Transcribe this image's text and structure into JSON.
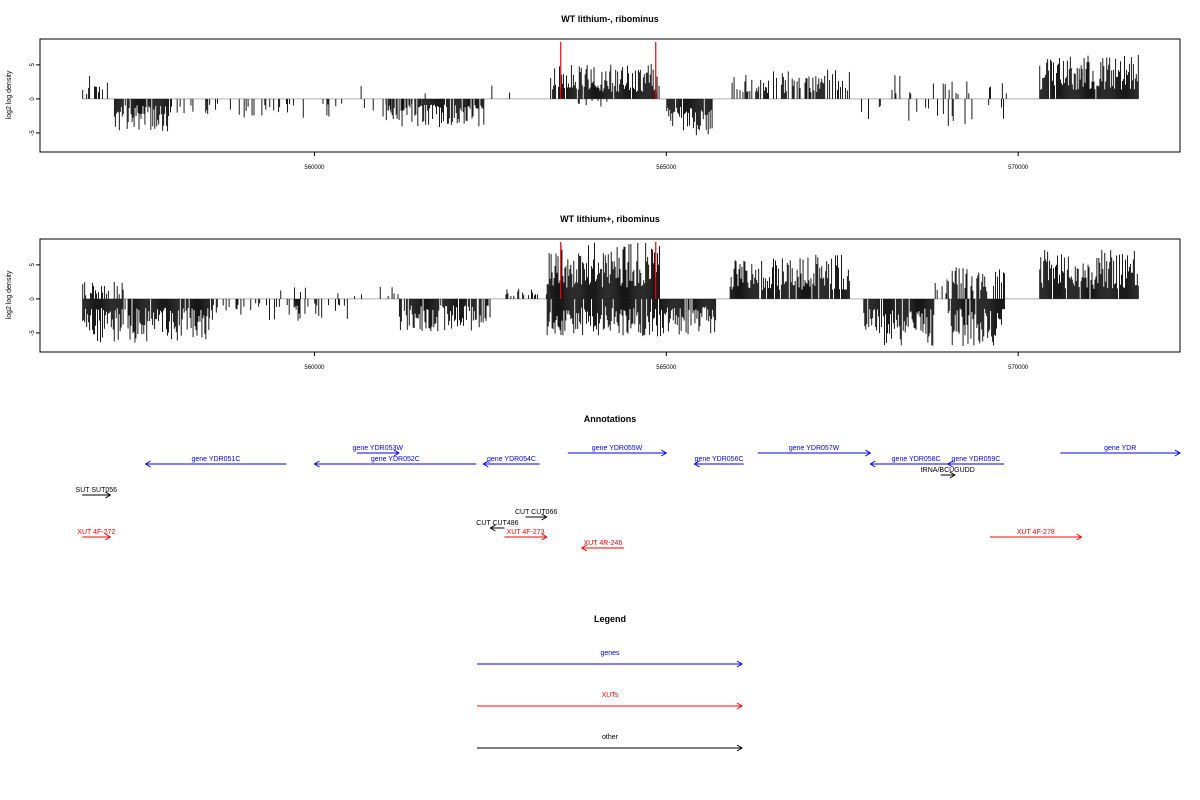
{
  "chart_data": [
    {
      "type": "bar",
      "title": "WT lithium-, ribominus",
      "ylabel": "log2 log density",
      "xlabel": "",
      "xlim": [
        556100,
        572300
      ],
      "ylim": [
        -7.8,
        8.8
      ],
      "x_ticks": [
        560000,
        565000,
        570000
      ],
      "x_tick_labels": [
        "560000",
        "565000",
        "570000"
      ],
      "y_ticks": [
        -5,
        0,
        5
      ],
      "y_tick_labels": [
        "-5",
        "0",
        "5"
      ],
      "markers": [
        563500,
        564850
      ],
      "coverage_regions": [
        {
          "start": 556700,
          "end": 557200,
          "sign": 1,
          "amp": 3.5,
          "density": 0.3
        },
        {
          "start": 557150,
          "end": 558000,
          "sign": -1,
          "amp": 4.8,
          "density": 0.8
        },
        {
          "start": 558000,
          "end": 561500,
          "sign": -1,
          "amp": 3.0,
          "density": 0.22
        },
        {
          "start": 560600,
          "end": 561800,
          "sign": 1,
          "amp": 2.3,
          "density": 0.08
        },
        {
          "start": 561000,
          "end": 562400,
          "sign": -1,
          "amp": 4.2,
          "density": 0.75
        },
        {
          "start": 562500,
          "end": 563000,
          "sign": 1,
          "amp": 2.8,
          "density": 0.06
        },
        {
          "start": 563350,
          "end": 564900,
          "sign": 1,
          "amp": 5.2,
          "density": 0.9
        },
        {
          "start": 563700,
          "end": 564800,
          "sign": -1,
          "amp": 1.2,
          "density": 0.15
        },
        {
          "start": 565000,
          "end": 565650,
          "sign": -1,
          "amp": 5.5,
          "density": 0.95
        },
        {
          "start": 565900,
          "end": 567600,
          "sign": 1,
          "amp": 4.3,
          "density": 0.5
        },
        {
          "start": 567600,
          "end": 569800,
          "sign": -1,
          "amp": 4.0,
          "density": 0.15
        },
        {
          "start": 568200,
          "end": 569900,
          "sign": 1,
          "amp": 3.5,
          "density": 0.12
        },
        {
          "start": 570300,
          "end": 571700,
          "sign": 1,
          "amp": 6.5,
          "density": 0.95
        }
      ]
    },
    {
      "type": "bar",
      "title": "WT lithium+, ribominus",
      "ylabel": "log2 log density",
      "xlabel": "",
      "xlim": [
        556100,
        572300
      ],
      "ylim": [
        -7.8,
        8.8
      ],
      "x_ticks": [
        560000,
        565000,
        570000
      ],
      "x_tick_labels": [
        "560000",
        "565000",
        "570000"
      ],
      "y_ticks": [
        -5,
        0,
        5
      ],
      "y_tick_labels": [
        "-5",
        "0",
        "5"
      ],
      "markers": [
        563500,
        564850
      ],
      "coverage_regions": [
        {
          "start": 556700,
          "end": 557300,
          "sign": 1,
          "amp": 2.6,
          "density": 0.5
        },
        {
          "start": 556700,
          "end": 558500,
          "sign": -1,
          "amp": 6.5,
          "density": 0.95
        },
        {
          "start": 558500,
          "end": 560500,
          "sign": -1,
          "amp": 3.2,
          "density": 0.3
        },
        {
          "start": 559500,
          "end": 561200,
          "sign": 1,
          "amp": 1.8,
          "density": 0.1
        },
        {
          "start": 561200,
          "end": 562500,
          "sign": -1,
          "amp": 4.8,
          "density": 0.85
        },
        {
          "start": 562700,
          "end": 563300,
          "sign": 1,
          "amp": 2.0,
          "density": 0.3
        },
        {
          "start": 563300,
          "end": 564900,
          "sign": 1,
          "amp": 8.3,
          "density": 1.0
        },
        {
          "start": 563300,
          "end": 565700,
          "sign": -1,
          "amp": 5.5,
          "density": 0.95
        },
        {
          "start": 565900,
          "end": 567600,
          "sign": 1,
          "amp": 6.5,
          "density": 0.9
        },
        {
          "start": 567800,
          "end": 568800,
          "sign": -1,
          "amp": 7.0,
          "density": 0.95
        },
        {
          "start": 568800,
          "end": 569000,
          "sign": 1,
          "amp": 3.0,
          "density": 0.3
        },
        {
          "start": 569000,
          "end": 569800,
          "sign": -1,
          "amp": 7.0,
          "density": 0.95
        },
        {
          "start": 569000,
          "end": 569800,
          "sign": 1,
          "amp": 5.0,
          "density": 0.6
        },
        {
          "start": 570300,
          "end": 571700,
          "sign": 1,
          "amp": 7.2,
          "density": 0.95
        }
      ]
    }
  ],
  "annotations": {
    "title": "Annotations",
    "colors": {
      "gene": "#0000ff",
      "xut": "#ff0000",
      "other": "#000000"
    },
    "features": [
      {
        "label": "gene YDR051C",
        "start": 557600,
        "end": 559600,
        "strand": "-",
        "kind": "gene",
        "row": 1
      },
      {
        "label": "gene YDR052C",
        "start": 560000,
        "end": 562300,
        "strand": "-",
        "kind": "gene",
        "row": 1
      },
      {
        "label": "gene YDR053W",
        "start": 560600,
        "end": 561200,
        "strand": "+",
        "kind": "gene",
        "row": 0
      },
      {
        "label": "gene YDR054C",
        "start": 562400,
        "end": 563200,
        "strand": "-",
        "kind": "gene",
        "row": 1
      },
      {
        "label": "gene YDR055W",
        "start": 563600,
        "end": 565000,
        "strand": "+",
        "kind": "gene",
        "row": 0
      },
      {
        "label": "gene YDR056C",
        "start": 565400,
        "end": 566100,
        "strand": "-",
        "kind": "gene",
        "row": 1
      },
      {
        "label": "gene YDR057W",
        "start": 566300,
        "end": 567900,
        "strand": "+",
        "kind": "gene",
        "row": 0
      },
      {
        "label": "gene YDR058C",
        "start": 567900,
        "end": 569200,
        "strand": "-",
        "kind": "gene",
        "row": 1
      },
      {
        "label": "gene YDR059C",
        "start": 569000,
        "end": 569800,
        "strand": "-",
        "kind": "gene",
        "row": 1
      },
      {
        "label": "gene YDR",
        "start": 570600,
        "end": 572300,
        "strand": "+",
        "kind": "gene",
        "row": 0
      },
      {
        "label": "tRNA/BCUGUDD",
        "start": 568900,
        "end": 569100,
        "strand": "+",
        "kind": "other",
        "row": 2
      },
      {
        "label": "SUT SUT056",
        "start": 556700,
        "end": 557100,
        "strand": "+",
        "kind": "other",
        "row": 3
      },
      {
        "label": "CUT CUT486",
        "start": 562500,
        "end": 562700,
        "strand": "-",
        "kind": "other",
        "row": 5
      },
      {
        "label": "CUT CUT066",
        "start": 563000,
        "end": 563300,
        "strand": "+",
        "kind": "other",
        "row": 4
      },
      {
        "label": "XUT 4F-272",
        "start": 556700,
        "end": 557100,
        "strand": "+",
        "kind": "xut",
        "row": 6
      },
      {
        "label": "XUT 4F-273",
        "start": 562700,
        "end": 563300,
        "strand": "+",
        "kind": "xut",
        "row": 6
      },
      {
        "label": "XUT 4R-246",
        "start": 563800,
        "end": 564400,
        "strand": "-",
        "kind": "xut",
        "row": 7
      },
      {
        "label": "XUT 4F-278",
        "start": 569600,
        "end": 570900,
        "strand": "+",
        "kind": "xut",
        "row": 6
      }
    ]
  },
  "legend": {
    "title": "Legend",
    "items": [
      {
        "label": "genes",
        "color": "#0000ff"
      },
      {
        "label": "XUTs",
        "color": "#ff0000"
      },
      {
        "label": "other",
        "color": "#000000"
      }
    ]
  }
}
